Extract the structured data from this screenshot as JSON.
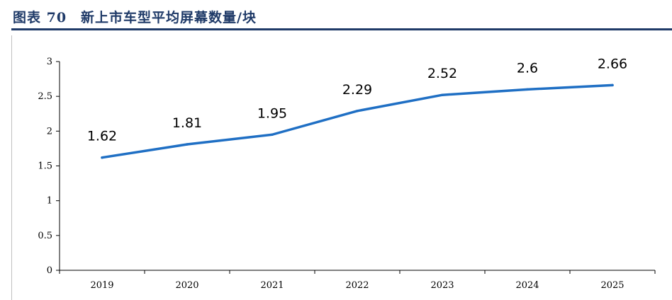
{
  "header": {
    "title": "图表 70　新上市车型平均屏幕数量/块"
  },
  "colors": {
    "accent": "#1f3a68",
    "line": "#1f6fc4"
  },
  "chart_data": {
    "type": "line",
    "title": "",
    "xlabel": "",
    "ylabel": "",
    "categories": [
      "2019",
      "2020",
      "2021",
      "2022",
      "2023",
      "2024",
      "2025"
    ],
    "series": [
      {
        "values": [
          1.62,
          1.81,
          1.95,
          2.29,
          2.52,
          2.6,
          2.66
        ]
      }
    ],
    "value_labels": [
      "1.62",
      "1.81",
      "1.95",
      "2.29",
      "2.52",
      "2.6",
      "2.66"
    ],
    "y_ticks": [
      "0",
      "0.5",
      "1",
      "1.5",
      "2",
      "2.5",
      "3"
    ],
    "ylim": [
      0,
      3
    ],
    "grid": false,
    "legend": "none"
  }
}
